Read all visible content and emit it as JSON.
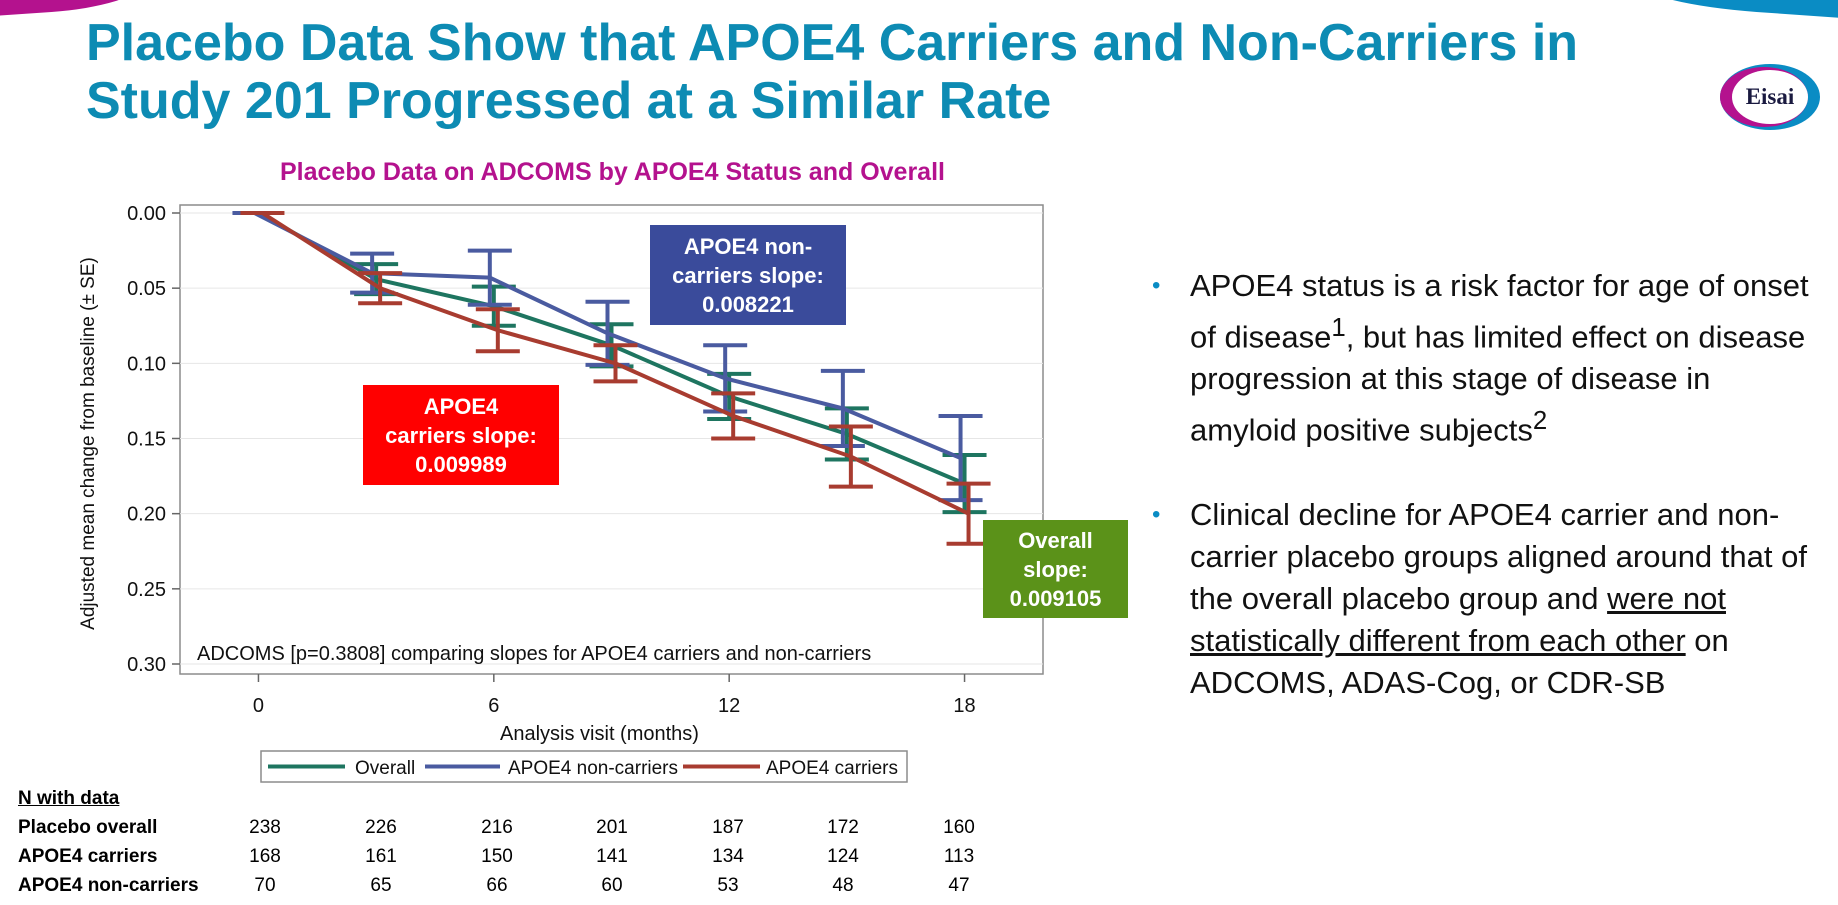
{
  "slide": {
    "title": "Placebo Data Show that APOE4 Carriers and Non-Carriers in Study 201 Progressed at a Similar Rate",
    "logo_text": "Eisai",
    "colors": {
      "title": "#0d8bb3",
      "chart_title": "#b4128e",
      "brand_magenta": "#b4128e",
      "brand_blue": "#0a8cc4"
    }
  },
  "slope_boxes": {
    "noncarriers": [
      "APOE4 non-",
      "carriers slope:",
      "0.008221"
    ],
    "carriers": [
      "APOE4",
      "carriers slope:",
      "0.009989"
    ],
    "overall": [
      "Overall",
      "slope:",
      "0.009105"
    ]
  },
  "bullets": [
    {
      "text": "APOE4 status is a risk factor for age of onset of disease",
      "sup1": "1",
      "text2": ", but has limited effect on disease progression at this stage of disease in amyloid positive subjects",
      "sup2": "2"
    },
    {
      "text": "Clinical decline for APOE4 carrier and non-carrier placebo groups aligned around that of the overall placebo group and ",
      "underlined": "were not statistically different from each other",
      "text2": " on ADCOMS, ADAS-Cog, or CDR-SB"
    }
  ],
  "n_table": {
    "header": "N with data",
    "rows": [
      {
        "label": "Placebo overall",
        "values": [
          "238",
          "226",
          "216",
          "201",
          "187",
          "172",
          "160"
        ]
      },
      {
        "label": "APOE4 carriers",
        "values": [
          "168",
          "161",
          "150",
          "141",
          "134",
          "124",
          "113"
        ]
      },
      {
        "label": "APOE4 non-carriers",
        "values": [
          "70",
          "65",
          "66",
          "60",
          "53",
          "48",
          "47"
        ]
      }
    ]
  },
  "chart_data": {
    "type": "line",
    "title": "Placebo Data on ADCOMS by APOE4 Status and Overall",
    "xlabel": "Analysis visit (months)",
    "ylabel": "Adjusted mean change from baseline (± SE)",
    "x": [
      0,
      3,
      6,
      9,
      12,
      15,
      18
    ],
    "xticks": [
      "0",
      "6",
      "12",
      "18"
    ],
    "xlim": [
      -2,
      20
    ],
    "yticks": [
      "0.00",
      "0.05",
      "0.10",
      "0.15",
      "0.20",
      "0.25",
      "0.30"
    ],
    "ylim": [
      0.0,
      0.3
    ],
    "y_reversed": true,
    "grid": true,
    "legend_position": "bottom-center",
    "annotation": "ADCOMS [p=0.3808] comparing slopes for APOE4 carriers and non-carriers",
    "series": [
      {
        "name": "Overall",
        "color": "#1e7560",
        "values": [
          0.0,
          0.044,
          0.062,
          0.088,
          0.122,
          0.147,
          0.18
        ],
        "se": [
          0.0,
          0.01,
          0.013,
          0.014,
          0.015,
          0.017,
          0.019
        ]
      },
      {
        "name": "APOE4 non-carriers",
        "color": "#4a5ba0",
        "values": [
          0.0,
          0.04,
          0.043,
          0.08,
          0.11,
          0.13,
          0.163
        ],
        "se": [
          0.0,
          0.013,
          0.018,
          0.021,
          0.022,
          0.025,
          0.028
        ]
      },
      {
        "name": "APOE4 carriers",
        "color": "#a83c30",
        "values": [
          0.0,
          0.05,
          0.078,
          0.1,
          0.135,
          0.162,
          0.2
        ],
        "se": [
          0.0,
          0.01,
          0.014,
          0.012,
          0.015,
          0.02,
          0.02
        ]
      }
    ]
  }
}
